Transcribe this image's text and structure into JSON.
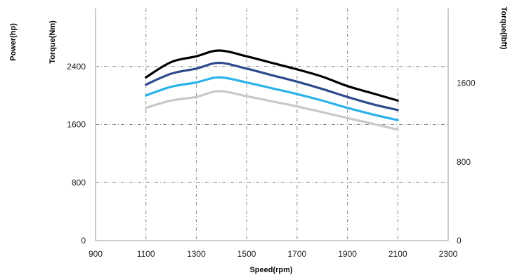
{
  "chart_data": {
    "type": "line",
    "title": "",
    "xlabel": "Speed(rpm)",
    "ylabel_outer": "Power(hp)",
    "ylabel": "Torque(Nm)",
    "ylabel_right": "Torque(lbft)",
    "xlim": [
      900,
      2300
    ],
    "xticks": [
      "900",
      "1100",
      "1300",
      "1500",
      "1700",
      "1900",
      "2100",
      "2300"
    ],
    "ylim": [
      0,
      3200
    ],
    "yticks": [
      "0",
      "800",
      "1600",
      "2400"
    ],
    "ylim_right": [
      0,
      2360
    ],
    "yticks_right": [
      "0",
      "800",
      "1600"
    ],
    "grid": "dash-dot",
    "x": [
      1100,
      1200,
      1300,
      1390,
      1500,
      1600,
      1700,
      1800,
      1900,
      2000,
      2100
    ],
    "series": [
      {
        "color": "#000000",
        "values": [
          2250,
          2460,
          2540,
          2620,
          2540,
          2450,
          2360,
          2260,
          2130,
          2030,
          1930
        ]
      },
      {
        "color": "#2e4a8c",
        "values": [
          2150,
          2300,
          2370,
          2450,
          2370,
          2280,
          2190,
          2090,
          1980,
          1880,
          1800
        ]
      },
      {
        "color": "#2bb3e8",
        "values": [
          2000,
          2120,
          2180,
          2250,
          2180,
          2100,
          2020,
          1930,
          1830,
          1740,
          1660
        ]
      },
      {
        "color": "#c8c8c8",
        "values": [
          1830,
          1930,
          1980,
          2060,
          1990,
          1920,
          1850,
          1770,
          1690,
          1610,
          1530
        ]
      }
    ]
  }
}
